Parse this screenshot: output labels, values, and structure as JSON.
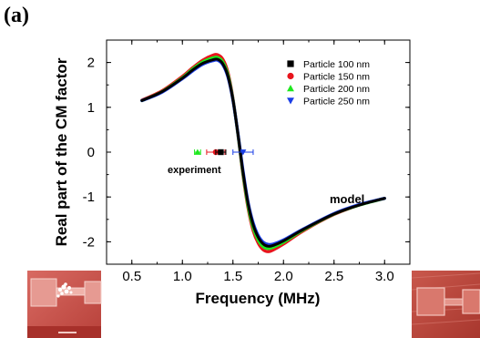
{
  "panel_label": "(a)",
  "chart_data": {
    "type": "line",
    "xlabel": "Frequency (MHz)",
    "ylabel": "Real part of the CM factor",
    "xlim": [
      0.25,
      3.25
    ],
    "ylim": [
      -2.5,
      2.5
    ],
    "xticks": [
      "0.5",
      "1.0",
      "1.5",
      "2.0",
      "2.5",
      "3.0"
    ],
    "yticks": [
      "2",
      "1",
      "0",
      "-1",
      "-2"
    ],
    "legend_position": "top-right",
    "series": [
      {
        "name": "Particle 100 nm",
        "color": "#000000",
        "marker": "square",
        "x": [
          0.6,
          0.8,
          1.0,
          1.1,
          1.2,
          1.3,
          1.35,
          1.4,
          1.45,
          1.5,
          1.55,
          1.6,
          1.65,
          1.7,
          1.75,
          1.8,
          1.85,
          1.9,
          2.0,
          2.2,
          2.5,
          2.75,
          3.0
        ],
        "y": [
          1.15,
          1.35,
          1.65,
          1.83,
          1.98,
          2.06,
          2.07,
          1.97,
          1.7,
          1.17,
          0.4,
          -0.45,
          -1.15,
          -1.62,
          -1.9,
          -2.05,
          -2.1,
          -2.08,
          -1.98,
          -1.72,
          -1.38,
          -1.18,
          -1.03
        ],
        "experiment_point": {
          "x": 1.38,
          "y": 0.0,
          "xerr": 0.05
        }
      },
      {
        "name": "Particle 150 nm",
        "color": "#e8141c",
        "marker": "circle",
        "x": [
          0.6,
          0.8,
          1.0,
          1.1,
          1.2,
          1.3,
          1.35,
          1.4,
          1.45,
          1.5,
          1.55,
          1.6,
          1.65,
          1.7,
          1.75,
          1.8,
          1.85,
          1.9,
          2.0,
          2.2,
          2.5,
          2.75,
          3.0
        ],
        "y": [
          1.16,
          1.37,
          1.69,
          1.88,
          2.05,
          2.16,
          2.17,
          2.07,
          1.78,
          1.2,
          0.38,
          -0.52,
          -1.25,
          -1.75,
          -2.03,
          -2.18,
          -2.22,
          -2.18,
          -2.05,
          -1.75,
          -1.39,
          -1.18,
          -1.03
        ],
        "experiment_point": {
          "x": 1.33,
          "y": 0.0,
          "xerr": 0.09
        }
      },
      {
        "name": "Particle 200 nm",
        "color": "#1ee81e",
        "marker": "triangle-up",
        "x": [
          0.6,
          0.8,
          1.0,
          1.1,
          1.2,
          1.3,
          1.35,
          1.4,
          1.45,
          1.5,
          1.55,
          1.6,
          1.65,
          1.7,
          1.75,
          1.8,
          1.85,
          1.9,
          2.0,
          2.2,
          2.5,
          2.75,
          3.0
        ],
        "y": [
          1.15,
          1.35,
          1.66,
          1.85,
          2.01,
          2.1,
          2.11,
          2.01,
          1.73,
          1.18,
          0.39,
          -0.48,
          -1.2,
          -1.68,
          -1.96,
          -2.11,
          -2.15,
          -2.12,
          -2.01,
          -1.73,
          -1.38,
          -1.18,
          -1.03
        ],
        "experiment_point": {
          "x": 1.15,
          "y": 0.0,
          "xerr": 0.03
        }
      },
      {
        "name": "Particle 250 nm",
        "color": "#1a3ee6",
        "marker": "triangle-down",
        "x": [
          0.6,
          0.8,
          1.0,
          1.1,
          1.2,
          1.3,
          1.35,
          1.4,
          1.45,
          1.5,
          1.55,
          1.6,
          1.65,
          1.7,
          1.75,
          1.8,
          1.85,
          1.9,
          2.0,
          2.2,
          2.5,
          2.75,
          3.0
        ],
        "y": [
          1.15,
          1.34,
          1.64,
          1.81,
          1.96,
          2.04,
          2.05,
          1.95,
          1.68,
          1.16,
          0.41,
          -0.42,
          -1.12,
          -1.58,
          -1.86,
          -2.01,
          -2.06,
          -2.05,
          -1.96,
          -1.71,
          -1.37,
          -1.17,
          -1.03
        ],
        "experiment_point": {
          "x": 1.6,
          "y": 0.0,
          "xerr": 0.1
        }
      }
    ],
    "annotations": [
      "experiment",
      "model"
    ]
  },
  "images": {
    "left_photo": "device-sem-left",
    "right_photo": "device-sem-right"
  }
}
